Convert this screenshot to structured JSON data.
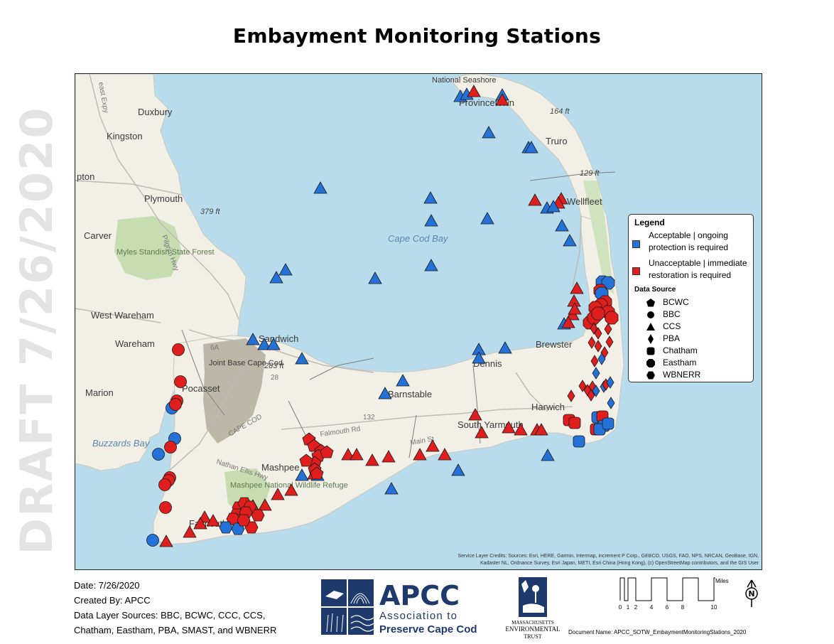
{
  "title": "Embayment Monitoring Stations",
  "watermark": "DRAFT 7/26/2020",
  "map": {
    "places": [
      "Duxbury",
      "Kingston",
      "Plymouth",
      "Carver",
      "West Wareham",
      "Wareham",
      "Marion",
      "Pocasset",
      "Sandwich",
      "Mashpee",
      "Falmouth",
      "Barnstable",
      "Dennis",
      "South Yarmouth",
      "Harwich",
      "Brewster",
      "Provincetown",
      "Truro",
      "Wellfleet",
      "pton"
    ],
    "water": [
      "Cape Cod Bay",
      "Buzzards Bay"
    ],
    "features": [
      "National Seashore",
      "Myles Standish State Forest",
      "Joint Base Cape Cod",
      "Mashpee National Wildlife Refuge"
    ],
    "elevations": [
      "164 ft",
      "129 ft",
      "379 ft",
      "283 ft"
    ],
    "roads": [
      "Falmouth Rd",
      "Main St",
      "Nathan Ellis Hwy",
      "Pilgrim Hwy",
      "6A",
      "132",
      "28",
      "CAPE COD"
    ],
    "road_label_partial": "east Expy",
    "credits_line1": "Service Layer Credits: Sources: Esri, HERE, Garmin, Intermap, increment P Corp., GEBCO, USGS, FAO, NPS, NRCAN, GeoBase, IGN,",
    "credits_line2": "Kadaster NL, Ordnance Survey, Esri Japan, METI, Esri China (Hong Kong), (c) OpenStreetMap contributors, and the GIS User"
  },
  "legend": {
    "title": "Legend",
    "acceptable": "Acceptable | ongoing protection is required",
    "unacceptable": "Unacceptable | immediate restoration is required",
    "source_title": "Data Source",
    "sources": [
      "BCWC",
      "BBC",
      "CCS",
      "PBA",
      "Chatham",
      "Eastham",
      "WBNERR"
    ],
    "colors": {
      "acceptable": "#2472d8",
      "unacceptable": "#e01e1e"
    }
  },
  "footer": {
    "date": "Date: 7/26/2020",
    "created": "Created By: APCC",
    "sources_line1": "Data Layer Sources: BBC, BCWC, CCC, CCS,",
    "sources_line2": "Chatham, Eastham, PBA, SMAST, and WBNERR",
    "doc_name": "Document Name: APCC_SOTW_EmbaymentMonitoringStations_2020"
  },
  "apcc_logo": {
    "big": "APCC",
    "line1": "Association to",
    "line2": "Preserve Cape Cod"
  },
  "met_logo": {
    "line1": "MASSACHUSETTS",
    "line2": "ENVIRONMENTAL",
    "line3": "TRUST"
  },
  "scale": {
    "unit": "Miles",
    "ticks": [
      "0",
      "1",
      "2",
      "4",
      "6",
      "8",
      "10"
    ]
  },
  "north": "N"
}
